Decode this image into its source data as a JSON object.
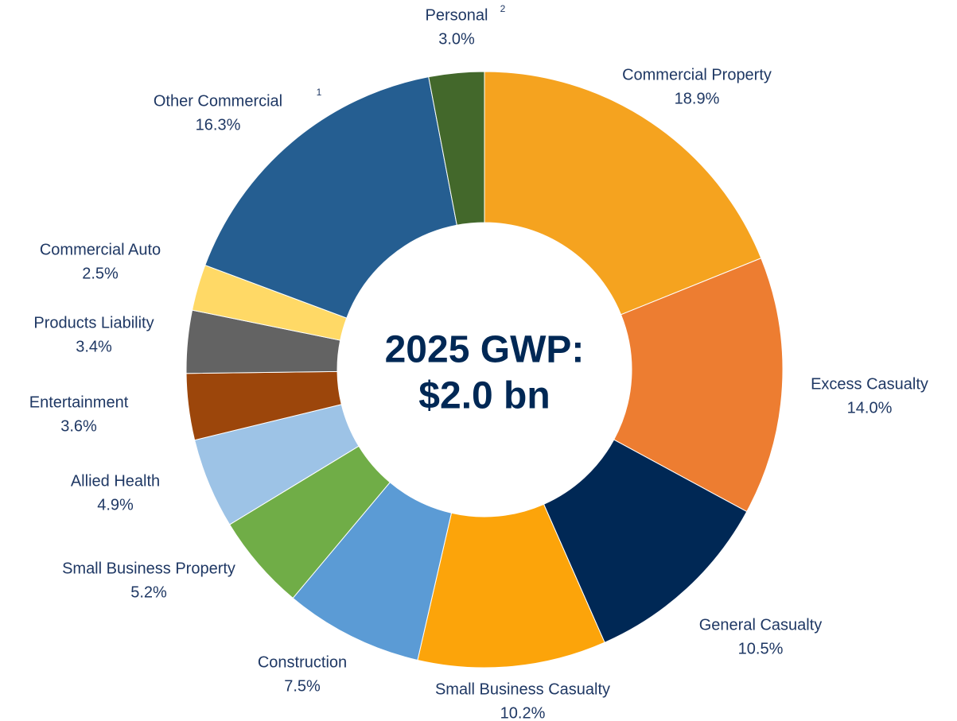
{
  "chart_data": {
    "type": "donut",
    "center_text": [
      "2025 GWP:",
      "$2.0 bn"
    ],
    "categories": [
      "Commercial Property",
      "Excess Casualty",
      "General Casualty",
      "Small Business Casualty",
      "Construction",
      "Small Business Property",
      "Allied Health",
      "Entertainment",
      "Products Liability",
      "Commercial Auto",
      "Other Commercial",
      "Personal"
    ],
    "values": [
      18.9,
      14.0,
      10.5,
      10.2,
      7.5,
      5.2,
      4.9,
      3.6,
      3.4,
      2.5,
      16.3,
      3.0
    ],
    "value_labels": [
      "18.9%",
      "14.0%",
      "10.5%",
      "10.2%",
      "7.5%",
      "5.2%",
      "4.9%",
      "3.6%",
      "3.4%",
      "2.5%",
      "16.3%",
      "3.0%"
    ],
    "colors": [
      "#f5a31f",
      "#ed7d31",
      "#002855",
      "#fca40a",
      "#5b9bd5",
      "#70ad47",
      "#9dc3e6",
      "#9c460b",
      "#636363",
      "#ffd966",
      "#255e91",
      "#43682b"
    ],
    "footnote_marks": {
      "10": "1",
      "11": "2"
    }
  }
}
